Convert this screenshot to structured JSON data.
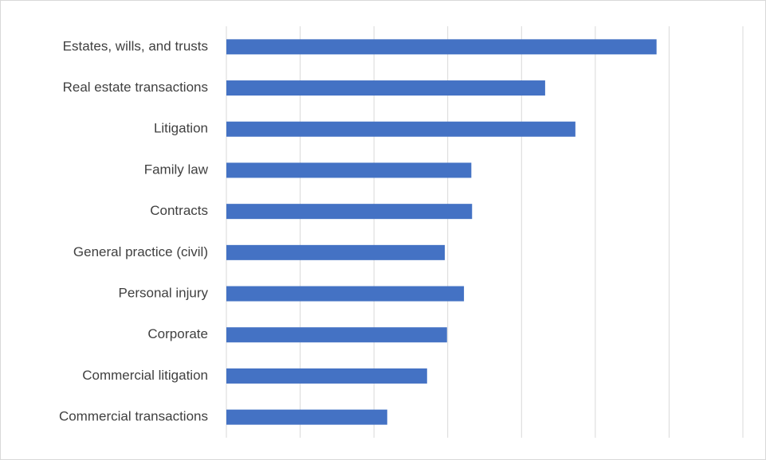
{
  "chart_data": {
    "type": "bar",
    "orientation": "horizontal",
    "categories": [
      "Estates, wills, and trusts",
      "Real estate transactions",
      "Litigation",
      "Family law",
      "Contracts",
      "General practice (civil)",
      "Personal injury",
      "Corporate",
      "Commercial litigation",
      "Commercial transactions"
    ],
    "values": [
      5.83,
      4.32,
      4.73,
      3.32,
      3.33,
      2.96,
      3.22,
      2.99,
      2.72,
      2.18
    ],
    "color": "#4472c4",
    "xlim": [
      0,
      7
    ],
    "xticks": [
      0,
      1,
      2,
      3,
      4,
      5,
      6,
      7
    ],
    "grid": true
  }
}
